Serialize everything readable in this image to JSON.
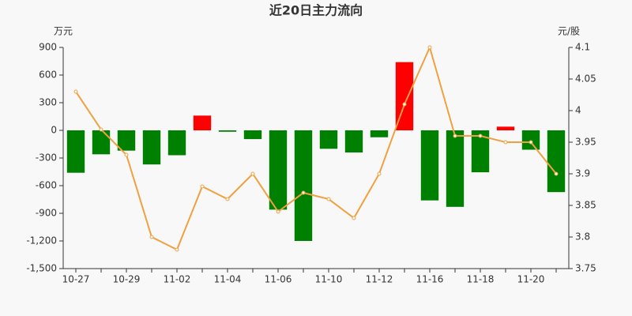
{
  "chart_data": {
    "type": "bar-line",
    "title": "近20日主力流向",
    "y_label": "万元",
    "y2_label": "元/股",
    "categories": [
      "10-27",
      null,
      "10-29",
      null,
      "11-02",
      null,
      "11-04",
      null,
      "11-06",
      null,
      "11-10",
      null,
      "11-12",
      null,
      "11-16",
      null,
      "11-18",
      null,
      "11-20",
      null
    ],
    "series": [
      {
        "type": "bar",
        "positive_color": "#ff0000",
        "negative_color": "#008000",
        "values": [
          -460,
          -260,
          -220,
          -370,
          -270,
          160,
          -15,
          -95,
          -860,
          -1200,
          -200,
          -240,
          -75,
          740,
          -760,
          -830,
          -455,
          40,
          -210,
          -670
        ]
      },
      {
        "type": "line",
        "axis": "y2",
        "color": "#f0a040",
        "values": [
          4.03,
          3.97,
          3.93,
          3.8,
          3.78,
          3.88,
          3.86,
          3.9,
          3.84,
          3.87,
          3.86,
          3.83,
          3.9,
          4.01,
          4.1,
          3.96,
          3.96,
          3.95,
          3.95,
          3.9
        ]
      }
    ],
    "ylim": [
      -1500,
      900
    ],
    "yticks": [
      900,
      600,
      300,
      0,
      -300,
      -600,
      -900,
      {
        "value": -1200,
        "label": "-1,200"
      },
      {
        "value": -1500,
        "label": "-1,500"
      }
    ],
    "y2lim": [
      3.75,
      4.1
    ],
    "y2ticks": [
      3.75,
      3.8,
      3.85,
      3.9,
      3.95,
      4,
      4.05,
      4.1
    ]
  }
}
